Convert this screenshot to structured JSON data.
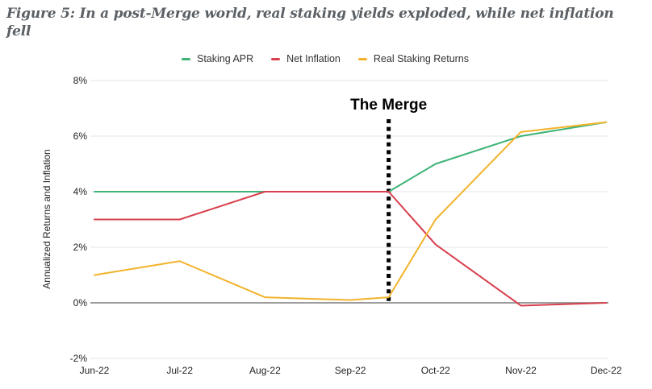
{
  "figure": {
    "title": "Figure 5: In a post-Merge world, real staking yields exploded, while net inflation fell"
  },
  "chart_data": {
    "type": "line",
    "title": "Figure 5: In a post-Merge world, real staking yields exploded, while net inflation fell",
    "xlabel": "",
    "ylabel": "Annualized Returns and Inflation",
    "categories": [
      "Jun-22",
      "Jul-22",
      "Aug-22",
      "Sep-22",
      "Oct-22",
      "Nov-22",
      "Dec-22"
    ],
    "ylim": [
      -2,
      8
    ],
    "yticks": [
      8,
      6,
      4,
      2,
      0,
      -2
    ],
    "ytick_suffix": "%",
    "grid": "horizontal",
    "legend_position": "top-center",
    "annotation": {
      "label": "The Merge",
      "x": 3.45,
      "style": "vertical-dotted-line",
      "color": "#000000"
    },
    "series": [
      {
        "name": "Staking APR",
        "color": "#3EB377",
        "x": [
          0,
          1,
          2,
          3,
          3.45,
          4,
          5,
          6
        ],
        "values": [
          4.0,
          4.0,
          4.0,
          4.0,
          4.0,
          5.0,
          6.0,
          6.5
        ]
      },
      {
        "name": "Net Inflation",
        "color": "#D8404E",
        "x": [
          0,
          1,
          2,
          3,
          3.45,
          4,
          5,
          6
        ],
        "values": [
          3.0,
          3.0,
          4.0,
          4.0,
          4.0,
          2.1,
          -0.1,
          0.0
        ]
      },
      {
        "name": "Real Staking Returns",
        "color": "#F2B32B",
        "x": [
          0,
          1,
          2,
          3,
          3.45,
          4,
          5,
          6
        ],
        "values": [
          1.0,
          1.5,
          0.2,
          0.1,
          0.2,
          3.0,
          6.15,
          6.5
        ]
      }
    ],
    "colors": {
      "gridline": "#e4e4e4",
      "zero_line": "#8f8f8f",
      "axis_text": "#1f1f1f",
      "title_text": "#5a6065",
      "background": "#ffffff"
    }
  }
}
